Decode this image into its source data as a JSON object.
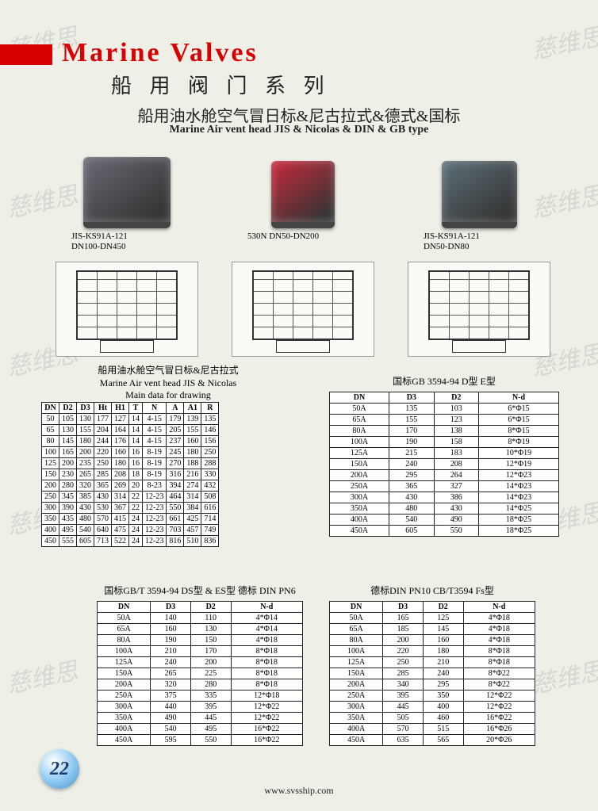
{
  "watermarks": {
    "text": "慈维思"
  },
  "header": {
    "title_en": "Marine Valves",
    "title_cn": "船 用 阀 门 系 列",
    "subtitle_cn": "船用油水舱空气冒日标&尼古拉式&德式&国标",
    "subtitle_en": "Marine Air vent head JIS & Nicolas & DIN & GB type",
    "accent_color": "#d80000"
  },
  "products": [
    {
      "caption_l1": "JIS-KS91A-121",
      "caption_l2": "DN100-DN450",
      "photo_color": "#6a6a75",
      "photo_w": 110,
      "photo_h": 90
    },
    {
      "caption_l1": "530N DN50-DN200",
      "caption_l2": "",
      "photo_color": "#c82a3c",
      "photo_w": 80,
      "photo_h": 85
    },
    {
      "caption_l1": "JIS-KS91A-121",
      "caption_l2": "DN50-DN80",
      "photo_color": "#5e7078",
      "photo_w": 95,
      "photo_h": 85
    }
  ],
  "table1": {
    "heading_cn": "船用油水舱空气冒日标&尼古拉式",
    "heading_en": "Marine Air vent head JIS & Nicolas",
    "heading_sub": "Main data for drawing",
    "columns": [
      "DN",
      "D2",
      "D3",
      "Ht",
      "H1",
      "T",
      "N",
      "A",
      "A1",
      "R"
    ],
    "rows": [
      [
        "50",
        "105",
        "130",
        "177",
        "127",
        "14",
        "4-15",
        "179",
        "139",
        "135"
      ],
      [
        "65",
        "130",
        "155",
        "204",
        "164",
        "14",
        "4-15",
        "205",
        "155",
        "146"
      ],
      [
        "80",
        "145",
        "180",
        "244",
        "176",
        "14",
        "4-15",
        "237",
        "160",
        "156"
      ],
      [
        "100",
        "165",
        "200",
        "220",
        "160",
        "16",
        "8-19",
        "245",
        "180",
        "250"
      ],
      [
        "125",
        "200",
        "235",
        "250",
        "180",
        "16",
        "8-19",
        "270",
        "188",
        "288"
      ],
      [
        "150",
        "230",
        "265",
        "285",
        "208",
        "18",
        "8-19",
        "316",
        "216",
        "330"
      ],
      [
        "200",
        "280",
        "320",
        "365",
        "269",
        "20",
        "8-23",
        "394",
        "274",
        "432"
      ],
      [
        "250",
        "345",
        "385",
        "430",
        "314",
        "22",
        "12-23",
        "464",
        "314",
        "508"
      ],
      [
        "300",
        "390",
        "430",
        "530",
        "367",
        "22",
        "12-23",
        "550",
        "384",
        "616"
      ],
      [
        "350",
        "435",
        "480",
        "570",
        "415",
        "24",
        "12-23",
        "661",
        "425",
        "714"
      ],
      [
        "400",
        "495",
        "540",
        "640",
        "475",
        "24",
        "12-23",
        "703",
        "457",
        "749"
      ],
      [
        "450",
        "555",
        "605",
        "713",
        "522",
        "24",
        "12-23",
        "816",
        "510",
        "836"
      ]
    ]
  },
  "table2": {
    "heading": "国标GB 3594-94 D型 E型",
    "columns": [
      "DN",
      "D3",
      "D2",
      "N-d"
    ],
    "rows": [
      [
        "50A",
        "135",
        "103",
        "6*Φ15"
      ],
      [
        "65A",
        "155",
        "123",
        "6*Φ15"
      ],
      [
        "80A",
        "170",
        "138",
        "8*Φ15"
      ],
      [
        "100A",
        "190",
        "158",
        "8*Φ19"
      ],
      [
        "125A",
        "215",
        "183",
        "10*Φ19"
      ],
      [
        "150A",
        "240",
        "208",
        "12*Φ19"
      ],
      [
        "200A",
        "295",
        "264",
        "12*Φ23"
      ],
      [
        "250A",
        "365",
        "327",
        "14*Φ23"
      ],
      [
        "300A",
        "430",
        "386",
        "14*Φ23"
      ],
      [
        "350A",
        "480",
        "430",
        "14*Φ25"
      ],
      [
        "400A",
        "540",
        "490",
        "18*Φ25"
      ],
      [
        "450A",
        "605",
        "550",
        "18*Φ25"
      ]
    ]
  },
  "table3": {
    "heading": "国标GB/T 3594-94 DS型 & ES型 德标 DIN PN6",
    "columns": [
      "DN",
      "D3",
      "D2",
      "N-d"
    ],
    "rows": [
      [
        "50A",
        "140",
        "110",
        "4*Φ14"
      ],
      [
        "65A",
        "160",
        "130",
        "4*Φ14"
      ],
      [
        "80A",
        "190",
        "150",
        "4*Φ18"
      ],
      [
        "100A",
        "210",
        "170",
        "8*Φ18"
      ],
      [
        "125A",
        "240",
        "200",
        "8*Φ18"
      ],
      [
        "150A",
        "265",
        "225",
        "8*Φ18"
      ],
      [
        "200A",
        "320",
        "280",
        "8*Φ18"
      ],
      [
        "250A",
        "375",
        "335",
        "12*Φ18"
      ],
      [
        "300A",
        "440",
        "395",
        "12*Φ22"
      ],
      [
        "350A",
        "490",
        "445",
        "12*Φ22"
      ],
      [
        "400A",
        "540",
        "495",
        "16*Φ22"
      ],
      [
        "450A",
        "595",
        "550",
        "16*Φ22"
      ]
    ]
  },
  "table4": {
    "heading": "德标DIN PN10 CB/T3594 Fs型",
    "columns": [
      "DN",
      "D3",
      "D2",
      "N-d"
    ],
    "rows": [
      [
        "50A",
        "165",
        "125",
        "4*Φ18"
      ],
      [
        "65A",
        "185",
        "145",
        "4*Φ18"
      ],
      [
        "80A",
        "200",
        "160",
        "4*Φ18"
      ],
      [
        "100A",
        "220",
        "180",
        "8*Φ18"
      ],
      [
        "125A",
        "250",
        "210",
        "8*Φ18"
      ],
      [
        "150A",
        "285",
        "240",
        "8*Φ22"
      ],
      [
        "200A",
        "340",
        "295",
        "8*Φ22"
      ],
      [
        "250A",
        "395",
        "350",
        "12*Φ22"
      ],
      [
        "300A",
        "445",
        "400",
        "12*Φ22"
      ],
      [
        "350A",
        "505",
        "460",
        "16*Φ22"
      ],
      [
        "400A",
        "570",
        "515",
        "16*Φ26"
      ],
      [
        "450A",
        "635",
        "565",
        "20*Φ26"
      ]
    ]
  },
  "footer": {
    "page": "22",
    "url": "www.svsship.com"
  }
}
